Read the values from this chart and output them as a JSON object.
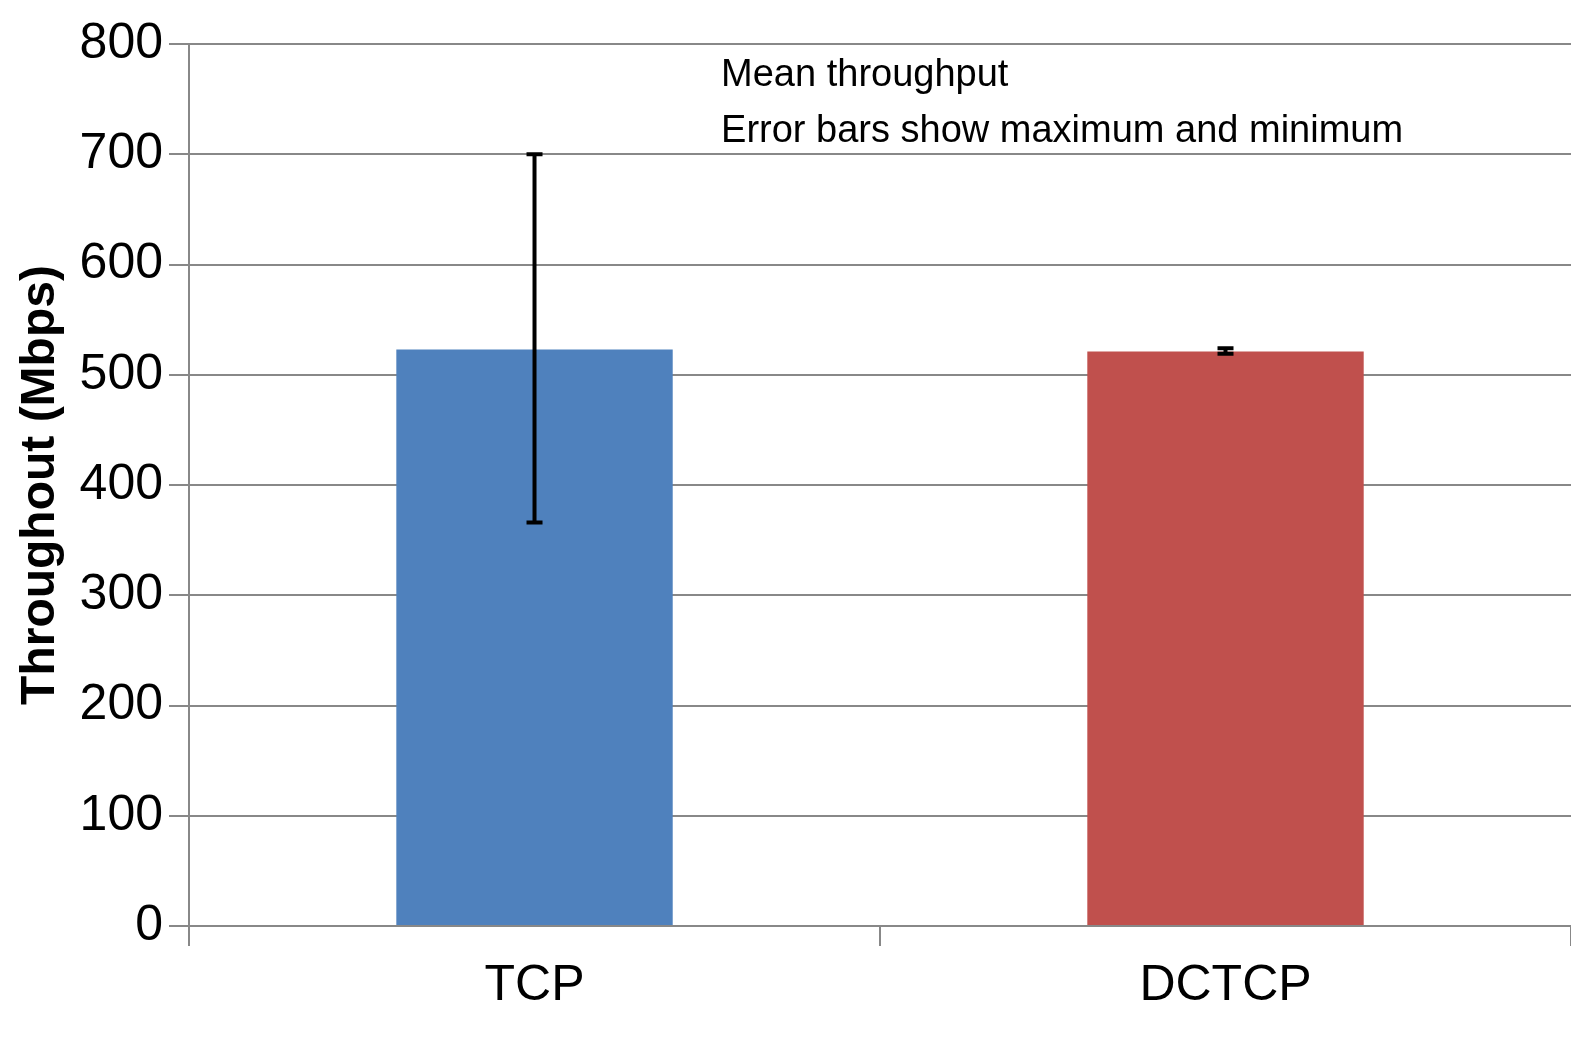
{
  "chart_data": {
    "type": "bar",
    "ylabel": "Throughout (Mbps)",
    "categories": [
      "TCP",
      "DCTCP"
    ],
    "values": [
      523,
      521
    ],
    "colors": [
      "#4f81bd",
      "#c0504d"
    ],
    "errors": [
      [
        366,
        700
      ],
      [
        519,
        524
      ]
    ],
    "ylim": [
      0,
      800
    ],
    "yticks": [
      0,
      100,
      200,
      300,
      400,
      500,
      600,
      700,
      800
    ],
    "grid": "y",
    "legend": false,
    "annotations": [
      "Mean throughput",
      "Error bars show maximum and minimum"
    ]
  }
}
